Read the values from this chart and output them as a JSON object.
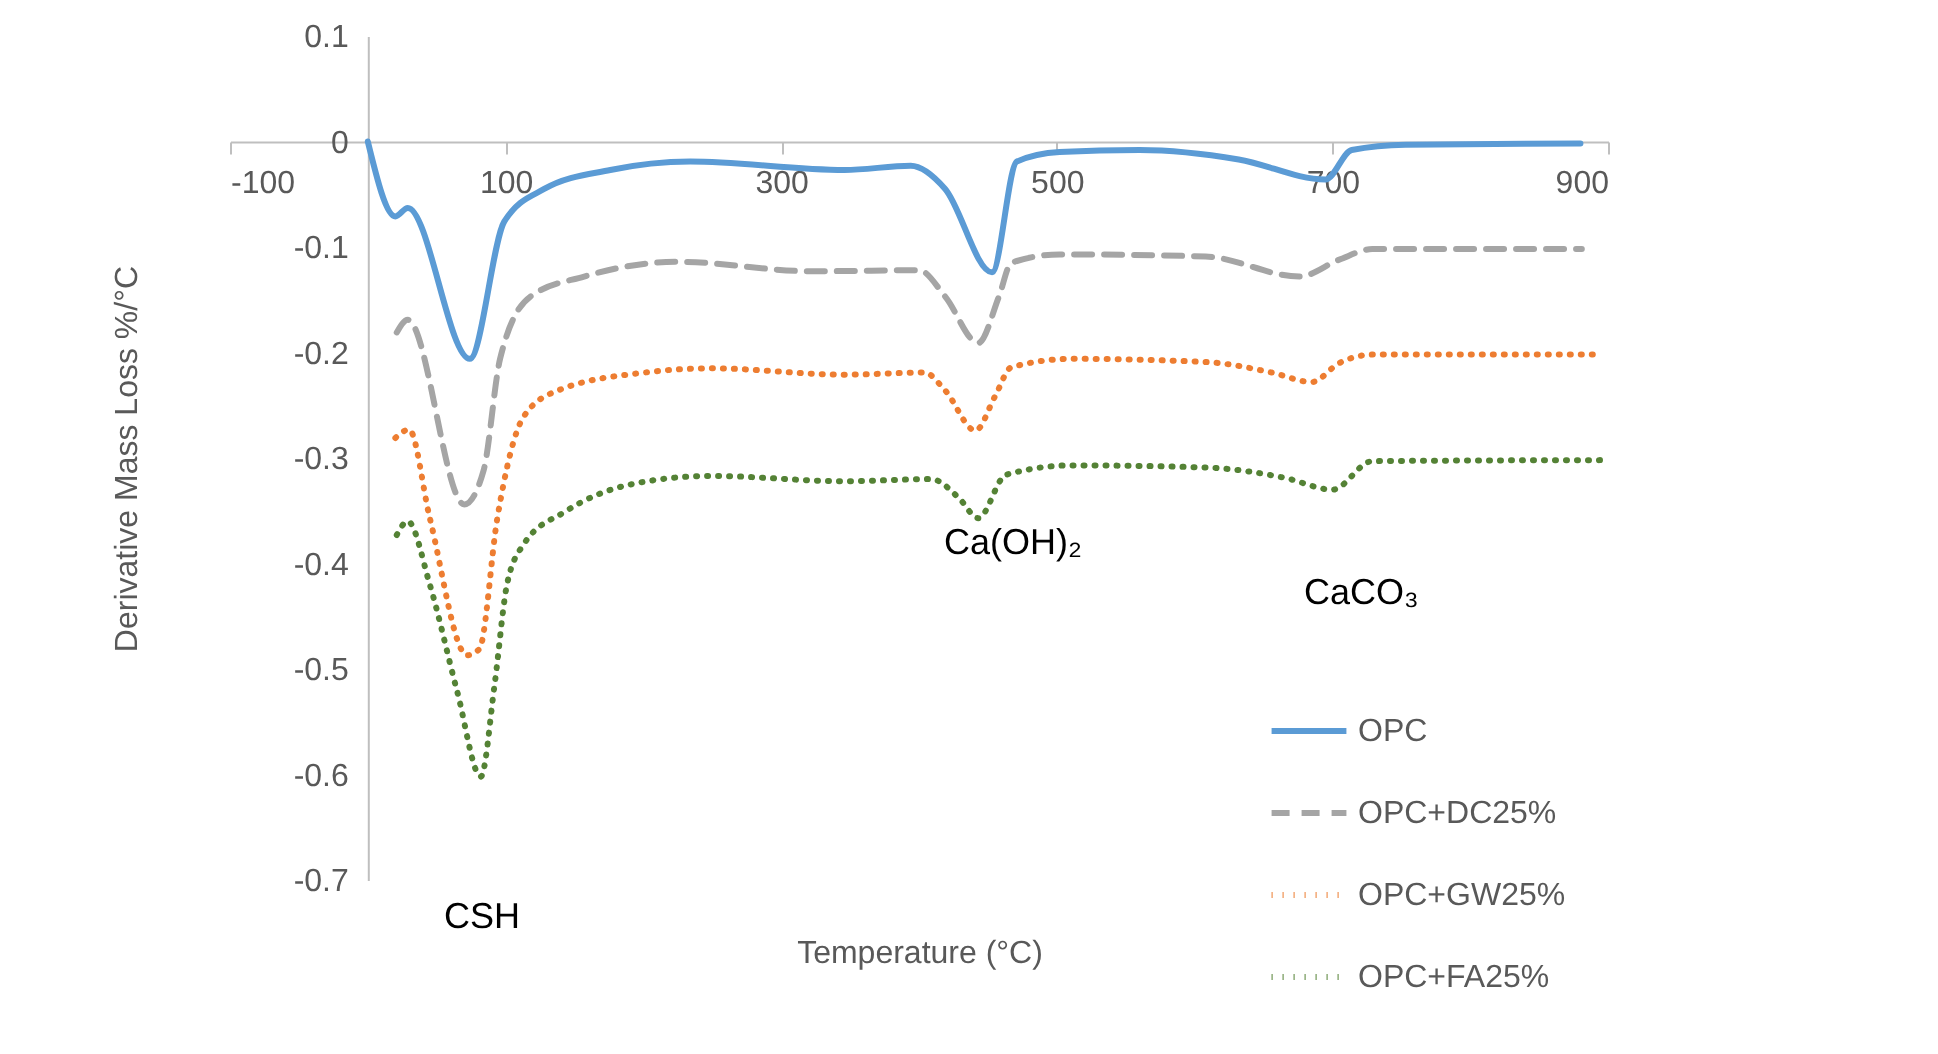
{
  "chart_data": {
    "type": "line",
    "xlabel": "Temperature (°C)",
    "ylabel": "Derivative Mass Loss %/°C",
    "xlim": [
      -100,
      900
    ],
    "xticks": [
      -100,
      100,
      300,
      500,
      700,
      900
    ],
    "ylim": [
      -0.7,
      0.1
    ],
    "yticks": [
      0.1,
      0,
      -0.1,
      -0.2,
      -0.3,
      -0.4,
      -0.5,
      -0.6,
      -0.7
    ],
    "legend": "bottom right",
    "annotations": [
      "CSH",
      "Ca(OH)₂",
      "CaCO₃"
    ],
    "series": [
      {
        "name": "OPC",
        "color": "#5b9bd5",
        "line_style": "solid",
        "x": [
          0,
          20,
          29,
          74,
          99,
          128,
          176,
          234,
          346,
          394,
          419,
          453,
          471,
          502,
          560,
          632,
          695,
          714,
          753,
          880
        ],
        "values": [
          0,
          -0.071,
          -0.063,
          -0.206,
          -0.076,
          -0.045,
          -0.027,
          -0.019,
          -0.027,
          -0.023,
          -0.045,
          -0.124,
          -0.019,
          -0.01,
          -0.008,
          -0.017,
          -0.036,
          -0.008,
          -0.003,
          -0.002
        ]
      },
      {
        "name": "OPC+DC25%",
        "color": "#a5a5a5",
        "line_style": "dashed",
        "x": [
          21,
          29,
          70,
          84,
          96,
          118,
          157,
          225,
          322,
          400,
          419,
          443,
          458,
          467,
          502,
          608,
          676,
          705,
          729,
          881
        ],
        "values": [
          -0.181,
          -0.169,
          -0.344,
          -0.312,
          -0.206,
          -0.147,
          -0.128,
          -0.114,
          -0.123,
          -0.122,
          -0.147,
          -0.191,
          -0.147,
          -0.115,
          -0.107,
          -0.109,
          -0.128,
          -0.112,
          -0.102,
          -0.102
        ]
      },
      {
        "name": "OPC+GW25%",
        "color": "#ed7d31",
        "line_style": "dotted",
        "x": [
          20,
          30,
          45,
          72,
          81,
          94,
          113,
          138,
          201,
          249,
          346,
          404,
          419,
          441,
          455,
          467,
          511,
          608,
          656,
          685,
          705,
          729,
          889
        ],
        "values": [
          -0.281,
          -0.273,
          -0.357,
          -0.487,
          -0.481,
          -0.357,
          -0.261,
          -0.236,
          -0.219,
          -0.215,
          -0.221,
          -0.219,
          -0.236,
          -0.274,
          -0.242,
          -0.214,
          -0.206,
          -0.209,
          -0.219,
          -0.228,
          -0.21,
          -0.202,
          -0.202
        ]
      },
      {
        "name": "OPC+FA25%",
        "color": "#548235",
        "line_style": "dotted",
        "x": [
          21,
          29,
          45,
          65,
          82,
          92,
          101,
          113,
          143,
          191,
          249,
          346,
          409,
          429,
          443,
          463,
          511,
          608,
          666,
          700,
          729,
          899
        ],
        "values": [
          -0.373,
          -0.36,
          -0.42,
          -0.522,
          -0.602,
          -0.515,
          -0.42,
          -0.382,
          -0.351,
          -0.325,
          -0.317,
          -0.322,
          -0.32,
          -0.338,
          -0.357,
          -0.316,
          -0.307,
          -0.309,
          -0.319,
          -0.33,
          -0.303,
          -0.302
        ]
      }
    ]
  }
}
